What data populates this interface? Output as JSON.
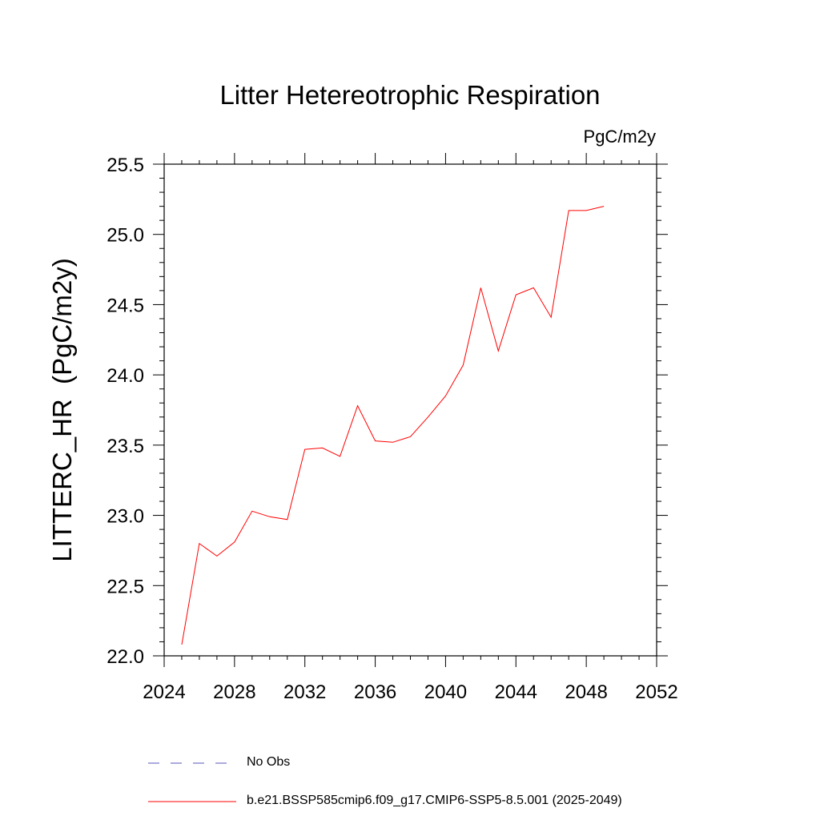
{
  "chart_data": {
    "type": "line",
    "title": "Litter Hetereotrophic Respiration",
    "units_label": "PgC/m2y",
    "ylabel": "LITTERC_HR  (PgC/m2y)",
    "xlabel": "",
    "xlim": [
      2024,
      2052
    ],
    "ylim": [
      22.0,
      25.5
    ],
    "x_ticks": [
      2024,
      2028,
      2032,
      2036,
      2040,
      2044,
      2048,
      2052
    ],
    "y_ticks": [
      "22.0",
      "22.5",
      "23.0",
      "23.5",
      "24.0",
      "24.5",
      "25.0",
      "25.5"
    ],
    "series": [
      {
        "name": "b.e21.BSSP585cmip6.f09_g17.CMIP6-SSP5-8.5.001 (2025-2049)",
        "color": "#ff0000",
        "x": [
          2025,
          2026,
          2027,
          2028,
          2029,
          2030,
          2031,
          2032,
          2033,
          2034,
          2035,
          2036,
          2037,
          2038,
          2039,
          2040,
          2041,
          2042,
          2043,
          2044,
          2045,
          2046,
          2047,
          2048,
          2049
        ],
        "values": [
          22.08,
          22.8,
          22.71,
          22.81,
          23.03,
          22.99,
          22.97,
          23.47,
          23.48,
          23.42,
          23.78,
          23.53,
          23.52,
          23.56,
          23.7,
          23.85,
          24.07,
          24.62,
          24.17,
          24.57,
          24.62,
          24.41,
          25.17,
          25.17,
          25.2
        ]
      }
    ],
    "legend": [
      {
        "label": "No Obs",
        "color": "#5a55b8",
        "style": "dashed"
      },
      {
        "label": "b.e21.BSSP585cmip6.f09_g17.CMIP6-SSP5-8.5.001 (2025-2049)",
        "color": "#ff0000",
        "style": "solid"
      }
    ]
  }
}
